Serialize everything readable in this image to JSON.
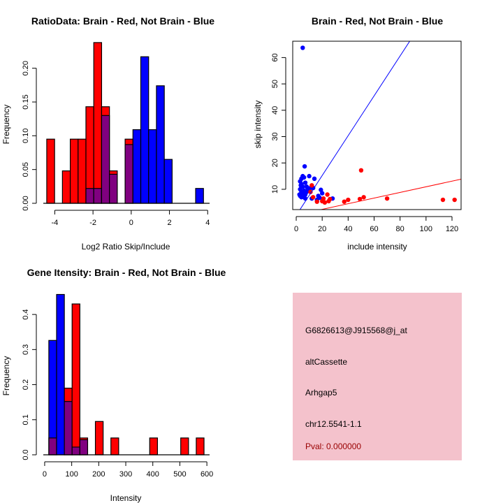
{
  "chart_data": [
    {
      "type": "histogram",
      "title": "RatioData: Brain - Red, Not Brain - Blue",
      "xlabel": "Log2 Ratio Skip/Include",
      "ylabel": "Frequency",
      "xlim": [
        -4.6,
        4.1
      ],
      "ylim": [
        0,
        0.24
      ],
      "xticks": [
        -4,
        -2,
        0,
        2,
        4
      ],
      "xtick_labels": [
        "-4",
        "-2",
        "0",
        "2",
        "4"
      ],
      "yticks": [
        0,
        0.05,
        0.1,
        0.15,
        0.2
      ],
      "ytick_labels": [
        "0.00",
        "0.05",
        "0.10",
        "0.15",
        "0.20"
      ],
      "bin_start": -4.42,
      "bin_width": 0.41,
      "series": [
        {
          "name": "Brain",
          "color": "#ff0000",
          "values": [
            0.095,
            0,
            0.048,
            0.095,
            0.095,
            0.143,
            0.238,
            0.143,
            0.048,
            0,
            0.095,
            0,
            0,
            0,
            0,
            0,
            0,
            0,
            0,
            0
          ]
        },
        {
          "name": "Not Brain",
          "color": "#0000ff",
          "values": [
            0,
            0,
            0,
            0,
            0,
            0.022,
            0.022,
            0.13,
            0.043,
            0,
            0.087,
            0.109,
            0.217,
            0.109,
            0.174,
            0.065,
            0,
            0,
            0,
            0.022
          ]
        }
      ],
      "overlap_color": "#800080"
    },
    {
      "type": "scatter",
      "title": "Brain - Red, Not Brain - Blue",
      "xlabel": "include intensity",
      "ylabel": "skip intensity",
      "xlim": [
        -2.7,
        127
      ],
      "ylim": [
        2.3,
        66.2
      ],
      "xticks": [
        0,
        20,
        40,
        60,
        80,
        100,
        120
      ],
      "yticks": [
        10,
        20,
        30,
        40,
        50,
        60
      ],
      "series": [
        {
          "name": "Not Brain",
          "color": "#0000ff",
          "line": {
            "slope": 0.756,
            "intercept": 0.11
          },
          "points": [
            [
              5,
              63.7
            ],
            [
              6.5,
              18.7
            ],
            [
              10,
              15
            ],
            [
              14,
              14
            ],
            [
              5,
              15
            ],
            [
              4,
              14
            ],
            [
              6,
              14.5
            ],
            [
              3,
              13
            ],
            [
              4,
              12
            ],
            [
              7,
              12.5
            ],
            [
              5,
              11
            ],
            [
              3,
              10
            ],
            [
              4,
              9
            ],
            [
              6,
              9.5
            ],
            [
              2.5,
              8
            ],
            [
              3,
              7.5
            ],
            [
              4,
              7
            ],
            [
              6,
              7
            ],
            [
              7,
              8
            ],
            [
              8,
              9
            ],
            [
              5,
              8.5
            ],
            [
              9,
              10
            ],
            [
              11,
              10.5
            ],
            [
              13,
              10.5
            ],
            [
              12,
              6.5
            ],
            [
              16,
              6
            ],
            [
              17,
              7.5
            ],
            [
              19,
              9.8
            ],
            [
              20,
              8.5
            ],
            [
              18,
              6.8
            ],
            [
              28,
              6.5
            ],
            [
              7,
              6.5
            ],
            [
              8,
              11
            ],
            [
              3.5,
              11.5
            ]
          ]
        },
        {
          "name": "Brain",
          "color": "#ff0000",
          "line": {
            "slope": 0.107,
            "intercept": 0.25
          },
          "points": [
            [
              50,
              17.2
            ],
            [
              12,
              11.5
            ],
            [
              11,
              9
            ],
            [
              13,
              7
            ],
            [
              24,
              8
            ],
            [
              21,
              6.5
            ],
            [
              22,
              5
            ],
            [
              25,
              5.5
            ],
            [
              26,
              6.3
            ],
            [
              16,
              5.3
            ],
            [
              20,
              5.5
            ],
            [
              37,
              5.3
            ],
            [
              40,
              6
            ],
            [
              49,
              6.3
            ],
            [
              52,
              7
            ],
            [
              70,
              6.5
            ],
            [
              113,
              6
            ],
            [
              122,
              6
            ]
          ]
        }
      ]
    },
    {
      "type": "histogram",
      "title": "Gene Itensity: Brain - Red, Not Brain - Blue",
      "xlabel": "Intensity",
      "ylabel": "Frequency",
      "xlim": [
        -5,
        610
      ],
      "ylim": [
        0,
        0.46
      ],
      "xticks": [
        0,
        100,
        200,
        300,
        400,
        500,
        600
      ],
      "yticks": [
        0,
        0.1,
        0.2,
        0.3,
        0.4
      ],
      "ytick_labels": [
        "0.0",
        "0.1",
        "0.2",
        "0.3",
        "0.4"
      ],
      "bin_start": 15.4,
      "bin_width": 28.7,
      "series": [
        {
          "name": "Brain",
          "color": "#ff0000",
          "values": [
            0.048,
            0,
            0.19,
            0.43,
            0.048,
            0,
            0.095,
            0,
            0.048,
            0,
            0,
            0,
            0,
            0.048,
            0,
            0,
            0,
            0.048,
            0,
            0.048
          ]
        },
        {
          "name": "Not Brain",
          "color": "#0000ff",
          "values": [
            0.326,
            0.457,
            0.152,
            0.022,
            0.043,
            0,
            0,
            0,
            0,
            0,
            0,
            0,
            0,
            0,
            0,
            0,
            0,
            0,
            0,
            0
          ]
        }
      ],
      "overlap_color": "#800080"
    }
  ],
  "info_panel": {
    "background": "#f4c2cc",
    "lines": [
      "G6826613@J915568@j_at",
      "altCassette",
      "Arhgap5",
      "chr12.5541-1.1"
    ],
    "pval": "Pval: 0.000000",
    "pval_color": "#990000"
  }
}
